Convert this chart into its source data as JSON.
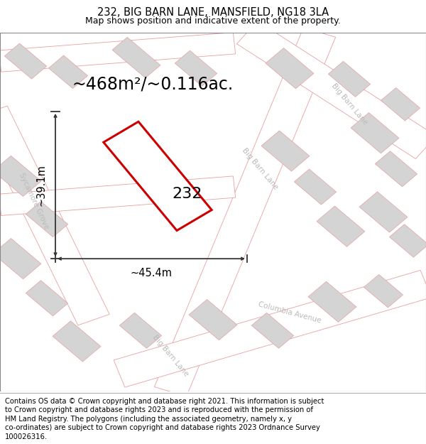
{
  "title_line1": "232, BIG BARN LANE, MANSFIELD, NG18 3LA",
  "title_line2": "Map shows position and indicative extent of the property.",
  "footer_lines": [
    "Contains OS data © Crown copyright and database right 2021. This information is subject",
    "to Crown copyright and database rights 2023 and is reproduced with the permission of",
    "HM Land Registry. The polygons (including the associated geometry, namely x, y",
    "co-ordinates) are subject to Crown copyright and database rights 2023 Ordnance Survey",
    "100026316."
  ],
  "area_text": "~468m²/~0.116ac.",
  "label_232": "232",
  "dim_width": "~45.4m",
  "dim_height": "~39.1m",
  "map_bg": "#f7f7f7",
  "road_edge": "#e8a0a0",
  "bld_fill": "#d4d4d4",
  "bld_edge": "#e8a0a0",
  "plot_fill": "#ffffff",
  "plot_edge": "#cc0000",
  "dim_color": "#333333",
  "road_label_color": "#bbbbbb",
  "title_fontsize": 10.5,
  "subtitle_fontsize": 9,
  "footer_fontsize": 7.2,
  "area_fontsize": 17,
  "label_fontsize": 16,
  "dim_fontsize": 10.5,
  "road_label_fontsize": 7.5
}
